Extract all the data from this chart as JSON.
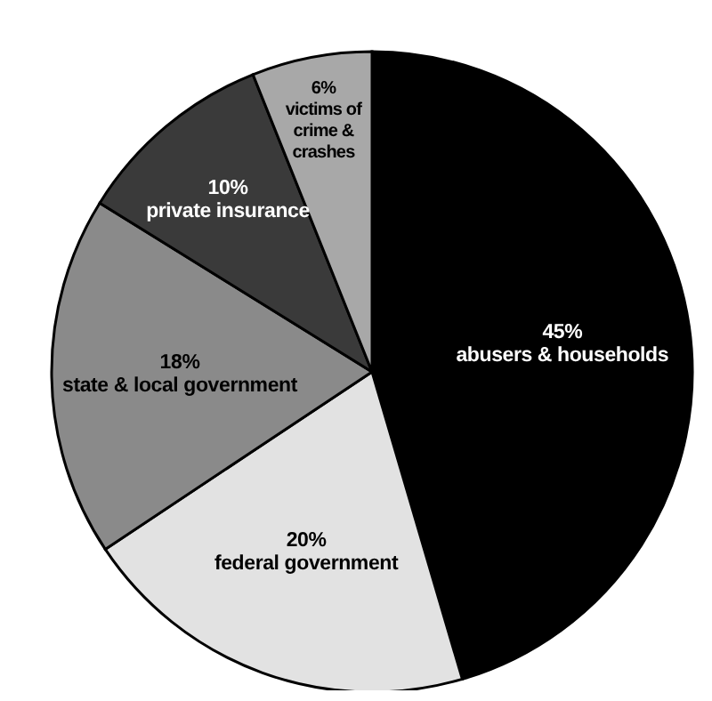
{
  "chart_data": {
    "type": "pie",
    "categories": [
      "abusers & households",
      "federal government",
      "state & local government",
      "private insurance",
      "victims of crime & crashes"
    ],
    "values": [
      45,
      20,
      18,
      10,
      6
    ],
    "value_labels": [
      "45%",
      "20%",
      "18%",
      "10%",
      "6%"
    ],
    "colors": [
      "#000000",
      "#e2e2e2",
      "#8a8a8a",
      "#3a3a3a",
      "#a8a8a8"
    ],
    "legend": false
  }
}
